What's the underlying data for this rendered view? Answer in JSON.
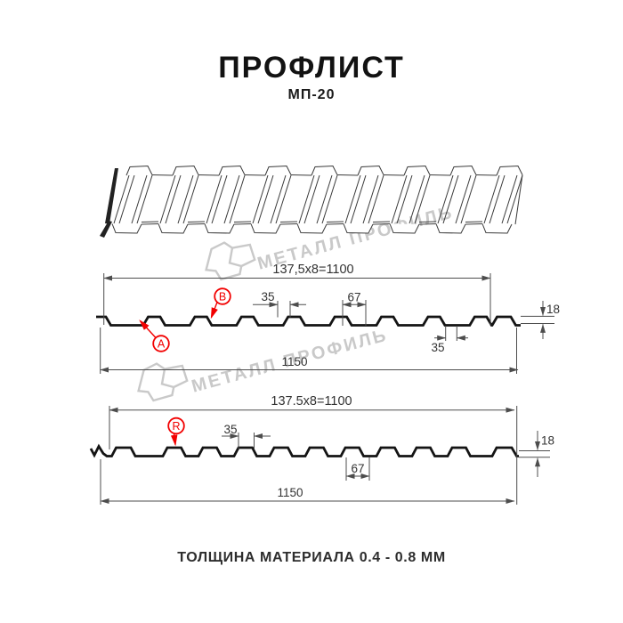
{
  "header": {
    "title": "ПРОФЛИСТ",
    "subtitle": "МП-20"
  },
  "watermark": {
    "text": "МЕТАЛЛ ПРОФИЛЬ"
  },
  "colors": {
    "accent_red": "#f20000",
    "line": "#4d4d4d",
    "profile": "#141414",
    "watermark_gray": "#c9c9c9"
  },
  "section_top": {
    "pitch_dim": "137,5x8=1100",
    "crest_width": "35",
    "valley_width": "67",
    "height": "18",
    "back_width": "35",
    "total_width": "1150",
    "label_a": "A",
    "label_b": "B"
  },
  "section_bottom": {
    "pitch_dim": "137.5x8=1100",
    "crest_width": "35",
    "valley_width": "67",
    "height": "18",
    "total_width": "1150",
    "label_r": "R"
  },
  "footer": {
    "caption": "ТОЛЩИНА МАТЕРИАЛА 0.4 - 0.8 ММ"
  }
}
